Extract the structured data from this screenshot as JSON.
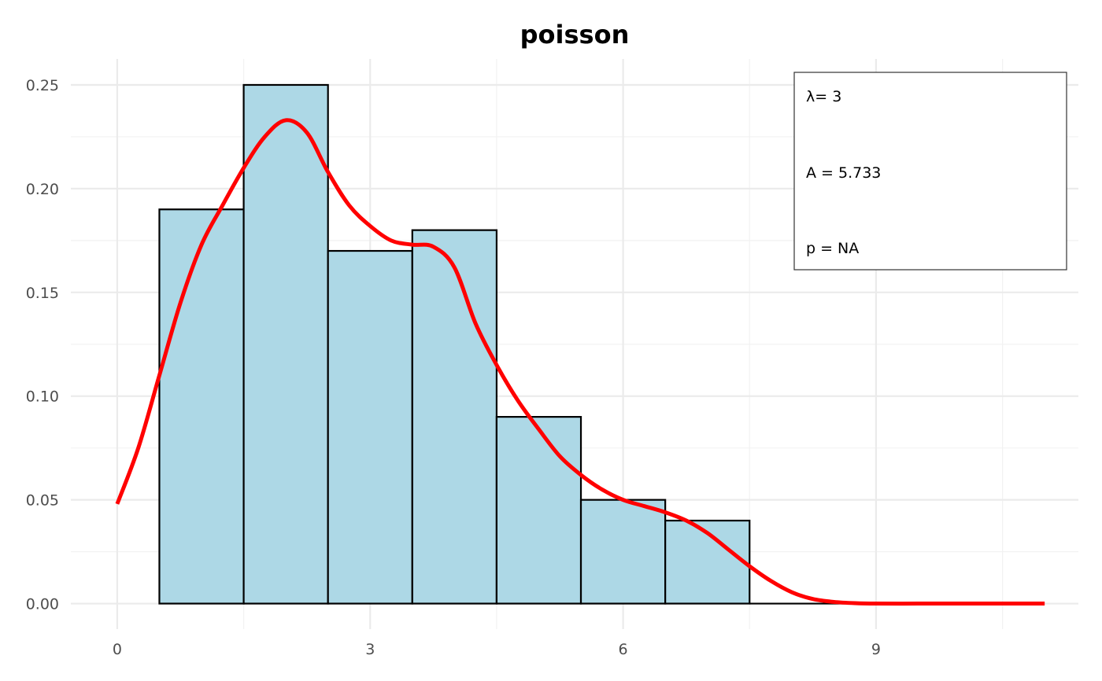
{
  "chart_data": {
    "type": "bar",
    "title": "poisson",
    "xlabel": "",
    "ylabel": "",
    "xlim": [
      -0.55,
      11.4
    ],
    "ylim": [
      -0.0123,
      0.2625
    ],
    "x_ticks": [
      0,
      3,
      6,
      9
    ],
    "x_tick_labels": [
      "0",
      "3",
      "6",
      "9"
    ],
    "x_minor_gridlines": [
      1.5,
      4.5,
      7.5,
      10.5
    ],
    "y_ticks": [
      0.0,
      0.05,
      0.1,
      0.15,
      0.2,
      0.25
    ],
    "y_tick_labels": [
      "0.00",
      "0.05",
      "0.10",
      "0.15",
      "0.20",
      "0.25"
    ],
    "y_minor_gridlines": [
      0.025,
      0.075,
      0.125,
      0.175,
      0.225
    ],
    "grid": true,
    "bins": [
      {
        "x": 1,
        "value": 0.19
      },
      {
        "x": 2,
        "value": 0.25
      },
      {
        "x": 3,
        "value": 0.17
      },
      {
        "x": 4,
        "value": 0.18
      },
      {
        "x": 5,
        "value": 0.09
      },
      {
        "x": 6,
        "value": 0.05
      },
      {
        "x": 7,
        "value": 0.04
      },
      {
        "x": 8,
        "value": 0.0
      },
      {
        "x": 9,
        "value": 0.0
      }
    ],
    "bin_width": 1,
    "bar_fill": "#add8e6",
    "bar_stroke": "#000000",
    "density_curve": {
      "color": "#ff0000",
      "x": [
        0,
        0.25,
        0.5,
        0.75,
        1.0,
        1.25,
        1.5,
        1.75,
        2.0,
        2.25,
        2.5,
        2.75,
        3.0,
        3.25,
        3.5,
        3.75,
        4.0,
        4.25,
        4.5,
        4.75,
        5.0,
        5.25,
        5.5,
        5.75,
        6.0,
        6.25,
        6.5,
        6.75,
        7.0,
        7.25,
        7.5,
        7.75,
        8.0,
        8.25,
        8.5,
        8.75,
        9.0,
        9.5,
        10.0,
        10.5,
        11.0
      ],
      "y": [
        0.048,
        0.075,
        0.11,
        0.145,
        0.173,
        0.192,
        0.21,
        0.225,
        0.233,
        0.227,
        0.208,
        0.192,
        0.182,
        0.175,
        0.173,
        0.172,
        0.162,
        0.135,
        0.115,
        0.098,
        0.084,
        0.071,
        0.062,
        0.055,
        0.05,
        0.047,
        0.044,
        0.04,
        0.034,
        0.026,
        0.018,
        0.011,
        0.0055,
        0.0022,
        0.0008,
        0.0002,
        0.0,
        0.0,
        0.0,
        0.0,
        0.0
      ]
    },
    "legend": {
      "position": "top-right",
      "lines": [
        "λ= 3",
        "A = 5.733",
        "p = NA"
      ]
    }
  }
}
